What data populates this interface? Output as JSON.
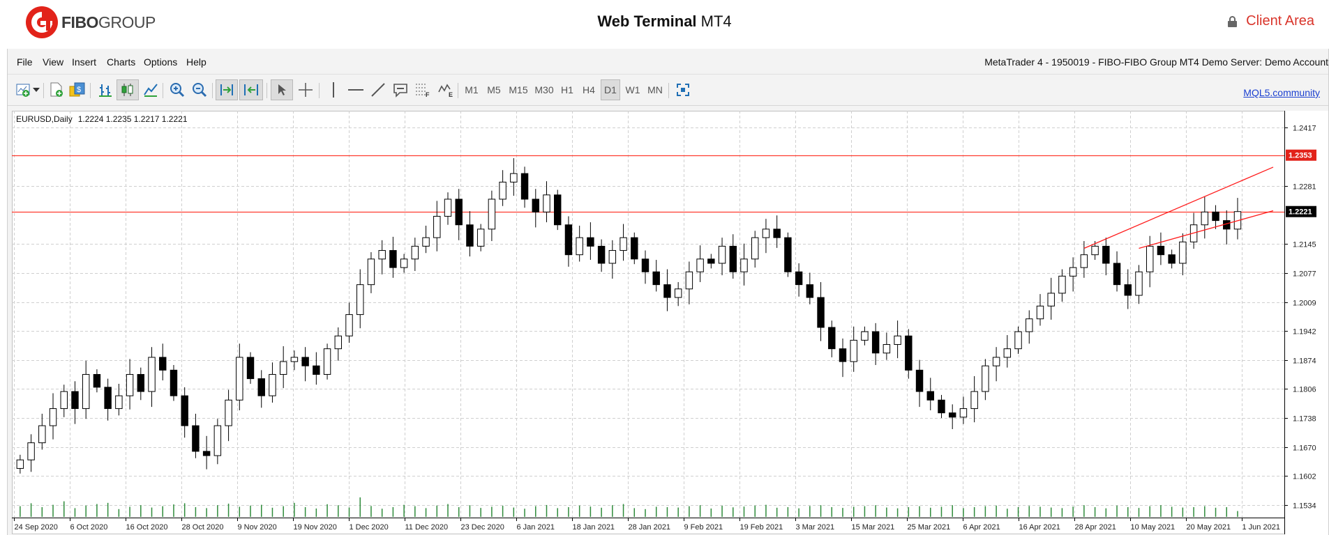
{
  "header": {
    "logo_text_bold": "FIBO",
    "logo_text_rest": "GROUP",
    "title_bold": "Web Terminal",
    "title_rest": " MT4",
    "client_area": "Client Area",
    "brand_color": "#e2231a"
  },
  "menu": {
    "items": [
      "File",
      "View",
      "Insert",
      "Charts",
      "Options",
      "Help"
    ],
    "account_info": "MetaTrader 4 - 1950019 - FIBO-FIBO Group MT4 Demo Server: Demo Account"
  },
  "toolbar": {
    "icons": [
      "new-chart-icon",
      "dropdown-arrow-icon",
      "new-order-icon",
      "market-deposit-icon",
      "bar-chart-icon",
      "candlestick-chart-icon",
      "line-chart-icon",
      "zoom-in-icon",
      "zoom-out-icon",
      "autoscroll-icon",
      "chart-shift-icon",
      "cursor-icon",
      "crosshair-icon",
      "vertical-line-icon",
      "horizontal-line-icon",
      "trendline-icon",
      "text-label-icon",
      "fibonacci-icon",
      "elliott-wave-icon",
      "fullscreen-icon"
    ],
    "timeframes": [
      "M1",
      "M5",
      "M15",
      "M30",
      "H1",
      "H4",
      "D1",
      "W1",
      "MN"
    ],
    "selected_timeframe": "D1",
    "community_link": "MQL5.community"
  },
  "chart_data": {
    "type": "candlestick",
    "symbol": "EURUSD",
    "period": "Daily",
    "ohlc_header": "1.2224 1.2235 1.2217 1.2221",
    "y_ticks": [
      "1.2417",
      "1.2281",
      "1.2145",
      "1.2077",
      "1.2009",
      "1.1942",
      "1.1874",
      "1.1806",
      "1.1738",
      "1.1670",
      "1.1602",
      "1.1534"
    ],
    "ylim": [
      1.1505,
      1.2452
    ],
    "x_labels": [
      "24 Sep 2020",
      "6 Oct 2020",
      "16 Oct 2020",
      "28 Oct 2020",
      "9 Nov 2020",
      "19 Nov 2020",
      "1 Dec 2020",
      "11 Dec 2020",
      "23 Dec 2020",
      "6 Jan 2021",
      "18 Jan 2021",
      "28 Jan 2021",
      "9 Feb 2021",
      "19 Feb 2021",
      "3 Mar 2021",
      "15 Mar 2021",
      "25 Mar 2021",
      "6 Apr 2021",
      "16 Apr 2021",
      "28 Apr 2021",
      "10 May 2021",
      "20 May 2021",
      "1 Jun 2021"
    ],
    "price_labels": [
      {
        "value": "1.2353",
        "color": "#e2231a"
      },
      {
        "value": "1.2221",
        "color": "#000000"
      }
    ],
    "horizontal_lines": [
      1.2353,
      1.2221
    ],
    "horizontal_line_color": "#ff3b2f",
    "channel_color": "#ff1a1a",
    "volume_color": "#2e8b3a",
    "grid": true,
    "anchors": [
      1.164,
      1.168,
      1.172,
      1.176,
      1.18,
      1.176,
      1.184,
      1.181,
      1.176,
      1.179,
      1.184,
      1.18,
      1.188,
      1.185,
      1.179,
      1.172,
      1.166,
      1.165,
      1.172,
      1.178,
      1.188,
      1.183,
      1.179,
      1.184,
      1.187,
      1.188,
      1.186,
      1.184,
      1.19,
      1.193,
      1.198,
      1.205,
      1.211,
      1.213,
      1.209,
      1.211,
      1.214,
      1.216,
      1.221,
      1.225,
      1.219,
      1.214,
      1.218,
      1.225,
      1.229,
      1.231,
      1.225,
      1.222,
      1.226,
      1.219,
      1.212,
      1.216,
      1.214,
      1.21,
      1.213,
      1.216,
      1.211,
      1.208,
      1.205,
      1.202,
      1.204,
      1.208,
      1.211,
      1.21,
      1.214,
      1.208,
      1.211,
      1.216,
      1.218,
      1.216,
      1.208,
      1.205,
      1.202,
      1.195,
      1.19,
      1.187,
      1.192,
      1.194,
      1.189,
      1.191,
      1.193,
      1.185,
      1.18,
      1.178,
      1.175,
      1.174,
      1.176,
      1.18,
      1.186,
      1.188,
      1.19,
      1.194,
      1.197,
      1.2,
      1.203,
      1.207,
      1.209,
      1.212,
      1.214,
      1.21,
      1.205,
      1.2025,
      1.208,
      1.214,
      1.212,
      1.21,
      1.215,
      1.219,
      1.222,
      1.22,
      1.218,
      1.2221
    ],
    "volumes": [
      0.55,
      0.7,
      0.5,
      0.62,
      0.8,
      0.45,
      0.58,
      0.66,
      0.72,
      0.4,
      0.52,
      0.6,
      0.48,
      0.55,
      0.64,
      0.7,
      0.5,
      0.45,
      0.6,
      0.68,
      0.52,
      0.58,
      0.62,
      0.47,
      0.55,
      0.72,
      0.5,
      0.43,
      0.65,
      0.6,
      0.48,
      1.0,
      0.56,
      0.42,
      0.5,
      0.62,
      0.55,
      0.45,
      0.58,
      0.66,
      0.5,
      0.6,
      0.46,
      0.52,
      0.57,
      0.48,
      0.42,
      0.55,
      0.61,
      0.45,
      0.5,
      0.58,
      0.53,
      0.47,
      0.6,
      0.66,
      0.45,
      0.4,
      0.52,
      0.5,
      0.48,
      0.55,
      0.6,
      0.43,
      0.57,
      0.49,
      0.53,
      0.58,
      0.62,
      0.47,
      0.5,
      0.44,
      0.56,
      0.6,
      0.5,
      0.46,
      0.52,
      0.55,
      0.6,
      0.48,
      0.44,
      0.5,
      0.55,
      0.47,
      0.52,
      0.6,
      0.45,
      0.5,
      0.55,
      0.58,
      0.42,
      0.5,
      0.56,
      0.52,
      0.48,
      0.45,
      0.53,
      0.6,
      0.5,
      0.44,
      0.58,
      0.5,
      0.46,
      0.55,
      0.6,
      0.52,
      0.48,
      0.5,
      0.55,
      0.47,
      0.5,
      0.3
    ]
  }
}
